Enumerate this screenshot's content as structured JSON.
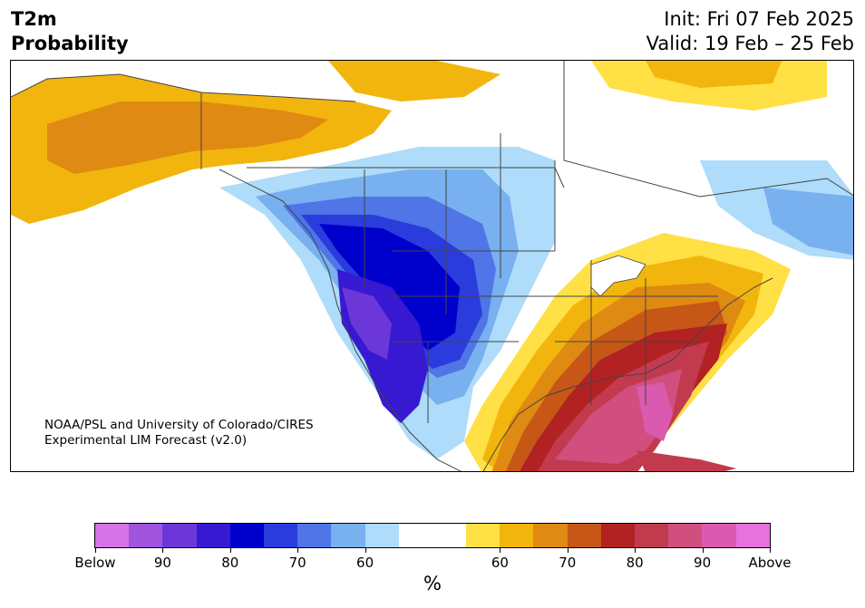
{
  "header": {
    "title_line1": "T2m",
    "title_line2": "Probability",
    "init": "Init: Fri 07 Feb 2025",
    "valid": "Valid: 19 Feb – 25 Feb"
  },
  "credit": {
    "line1": "NOAA/PSL and University of Colorado/CIRES",
    "line2": "Experimental LIM Forecast (v2.0)"
  },
  "colorbar": {
    "colors": [
      "#d673e8",
      "#a054dd",
      "#6c37d8",
      "#3719d2",
      "#0000cc",
      "#2a3cdc",
      "#4f75e6",
      "#78b0f0",
      "#aedcfa",
      "#ffffff",
      "#ffffff",
      "#ffe045",
      "#f2b50d",
      "#df8a12",
      "#c65716",
      "#b22222",
      "#c23a4e",
      "#d04f7f",
      "#da5ab0",
      "#e672de"
    ],
    "ticks": [
      "Below",
      "90",
      "80",
      "70",
      "60",
      "60",
      "70",
      "80",
      "90",
      "Above"
    ],
    "unit": "%"
  }
}
